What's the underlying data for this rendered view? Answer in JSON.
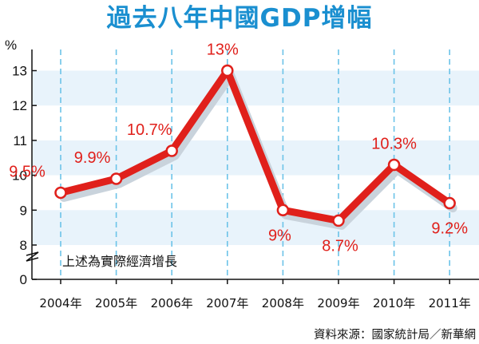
{
  "title": "過去八年中國GDP增幅",
  "chart_data": {
    "type": "line",
    "title": "過去八年中國GDP增幅",
    "ylabel": "%",
    "xlabel": "",
    "ylim": [
      0,
      13.5
    ],
    "y_axis_break": [
      0,
      8
    ],
    "yticks": [
      0,
      8,
      9,
      10,
      11,
      12,
      13
    ],
    "grid": "horizontal bands + vertical dashed",
    "categories": [
      "2004年",
      "2005年",
      "2006年",
      "2007年",
      "2008年",
      "2009年",
      "2010年",
      "2011年"
    ],
    "series": [
      {
        "values": [
          9.5,
          9.9,
          10.7,
          13,
          9,
          8.7,
          10.3,
          9.2
        ],
        "labels": [
          "9.5%",
          "9.9%",
          "10.7%",
          "13%",
          "9%",
          "8.7%",
          "10.3%",
          "9.2%"
        ]
      }
    ],
    "note": "上述為實際經濟增長",
    "source": "資料來源：國家統計局／新華網"
  },
  "colors": {
    "title": "#1a8fd0",
    "line": "#e0201b",
    "label": "#e0201b",
    "band": "#e8f3fb",
    "grid_dash": "#6cc3e8"
  }
}
